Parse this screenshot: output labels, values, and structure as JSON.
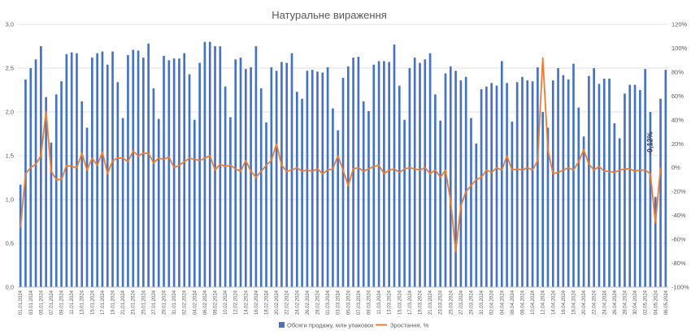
{
  "chart_data": {
    "type": "bar+line",
    "title": "Натуральне вираження",
    "xlabel": "",
    "ylabel": "",
    "y_left_lim": [
      0,
      3.0
    ],
    "y_left_ticks": [
      "0,0",
      "0,5",
      "1,0",
      "1,5",
      "2,0",
      "2,5",
      "3,0"
    ],
    "y_right_lim": [
      -100,
      120
    ],
    "y_right_ticks": [
      "-100%",
      "-80%",
      "-60%",
      "-40%",
      "-20%",
      "0%",
      "20%",
      "40%",
      "60%",
      "80%",
      "100%",
      "120%"
    ],
    "x_tick_labels": [
      "01.01.2024",
      "03.01.2024",
      "05.01.2024",
      "07.01.2024",
      "09.01.2024",
      "11.01.2024",
      "13.01.2024",
      "15.01.2024",
      "17.01.2024",
      "19.01.2024",
      "21.01.2024",
      "23.01.2024",
      "25.01.2024",
      "27.01.2024",
      "29.01.2024",
      "31.01.2024",
      "02.02.2024",
      "04.02.2024",
      "06.02.2024",
      "08.02.2024",
      "10.02.2024",
      "12.02.2024",
      "14.02.2024",
      "16.02.2024",
      "18.02.2024",
      "20.02.2024",
      "22.02.2024",
      "24.02.2024",
      "26.02.2024",
      "28.02.2024",
      "01.03.2024",
      "03.03.2024",
      "05.03.2024",
      "07.03.2024",
      "09.03.2024",
      "11.03.2024",
      "13.03.2024",
      "15.03.2024",
      "17.03.2024",
      "19.03.2024",
      "21.03.2024",
      "23.03.2024",
      "25.03.2024",
      "27.03.2024",
      "29.03.2024",
      "31.03.2024",
      "02.04.2024",
      "04.04.2024",
      "06.04.2024",
      "08.04.2024",
      "10.04.2024",
      "12.04.2024",
      "14.04.2024",
      "16.04.2024",
      "18.04.2024",
      "20.04.2024",
      "22.04.2024",
      "24.04.2024",
      "26.04.2024",
      "28.04.2024",
      "30.04.2024",
      "02.05.2024",
      "04.05.2024",
      "06.05.2024"
    ],
    "series": [
      {
        "name": "Обсяги продажу, млн упаковок",
        "type": "bar",
        "axis": "left",
        "color": "#4472C4",
        "values": [
          1.17,
          2.37,
          2.5,
          2.6,
          2.75,
          2.17,
          1.65,
          2.2,
          2.35,
          2.66,
          2.68,
          2.67,
          2.12,
          1.82,
          2.62,
          2.67,
          2.69,
          2.54,
          2.69,
          2.34,
          1.93,
          2.65,
          2.71,
          2.7,
          2.62,
          2.78,
          2.27,
          1.92,
          2.64,
          2.59,
          2.61,
          2.61,
          2.67,
          2.43,
          1.91,
          2.56,
          2.8,
          2.8,
          2.75,
          2.75,
          2.29,
          1.94,
          2.6,
          2.62,
          2.49,
          2.51,
          2.75,
          2.27,
          1.88,
          2.51,
          2.47,
          2.57,
          2.56,
          2.67,
          2.23,
          2.15,
          2.47,
          2.48,
          2.46,
          2.45,
          2.51,
          2.04,
          1.79,
          2.39,
          2.52,
          2.62,
          2.63,
          2.12,
          2.01,
          2.54,
          2.58,
          2.58,
          2.57,
          2.77,
          2.3,
          1.91,
          2.5,
          2.62,
          2.56,
          2.6,
          2.67,
          2.2,
          1.9,
          2.44,
          2.52,
          2.47,
          2.36,
          2.4,
          1.93,
          1.64,
          2.26,
          2.29,
          2.33,
          2.3,
          2.58,
          2.33,
          1.89,
          2.34,
          2.4,
          2.36,
          2.35,
          2.51,
          2.0,
          1.82,
          2.36,
          2.5,
          2.42,
          2.37,
          2.55,
          2.05,
          1.72,
          2.41,
          2.5,
          2.32,
          2.38,
          2.38,
          1.87,
          1.7,
          2.21,
          2.31,
          2.31,
          2.25,
          2.49,
          2.0,
          1.03,
          2.15,
          2.48
        ]
      },
      {
        "name": "Зростання, %",
        "type": "line",
        "axis": "right",
        "color": "#ED7D31",
        "values": [
          -50,
          -5,
          0,
          3,
          10,
          47,
          -3,
          -10,
          -10,
          2,
          1,
          0,
          12,
          -2,
          8,
          2,
          13,
          -5,
          6,
          8,
          8,
          5,
          14,
          10,
          12,
          12,
          4,
          8,
          7,
          9,
          0,
          2,
          5,
          8,
          7,
          6,
          8,
          10,
          -2,
          3,
          1,
          2,
          -1,
          -3,
          6,
          -3,
          -8,
          -3,
          2,
          6,
          20,
          2,
          -3,
          -2,
          0,
          -3,
          -2,
          -3,
          -1,
          -5,
          -2,
          -1,
          10,
          -2,
          -15,
          -1,
          0,
          -3,
          -1,
          1,
          2,
          -5,
          -2,
          -1,
          -4,
          -1,
          0,
          -1,
          -2,
          0,
          -5,
          -2,
          -8,
          -2,
          -28,
          -70,
          -32,
          -20,
          -15,
          -10,
          -8,
          -2,
          -4,
          0,
          -2,
          10,
          -2,
          -1,
          -2,
          0,
          -2,
          6,
          92,
          15,
          -5,
          -4,
          -2,
          0,
          -2,
          5,
          15,
          3,
          -2,
          1,
          -3,
          -3,
          -4,
          -2,
          -1,
          -1,
          -3,
          -2,
          -2,
          -5,
          -46,
          0
        ]
      }
    ],
    "annotations": [
      {
        "text": "-0,12%"
      }
    ],
    "legend_position": "bottom"
  }
}
